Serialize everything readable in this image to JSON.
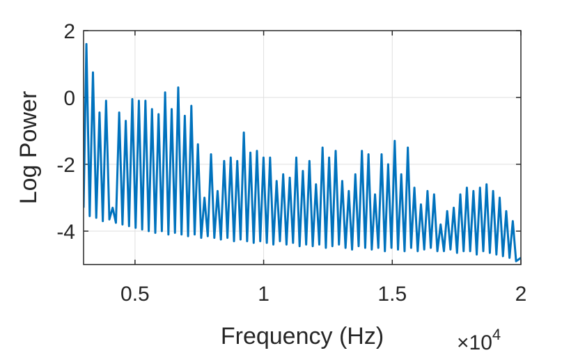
{
  "chart_data": {
    "type": "line",
    "xlabel": "Frequency (Hz)",
    "ylabel": "Log Power",
    "x_multiplier": {
      "base": "×10",
      "exponent": "4"
    },
    "color": "#0072bd",
    "grid": true,
    "xlim": [
      3000,
      20000
    ],
    "ylim": [
      -5,
      2
    ],
    "xticks": [
      {
        "value": 5000,
        "label": "0.5"
      },
      {
        "value": 10000,
        "label": "1"
      },
      {
        "value": 15000,
        "label": "1.5"
      },
      {
        "value": 20000,
        "label": "2"
      }
    ],
    "yticks": [
      -4,
      -2,
      0,
      2
    ],
    "x": [
      3000,
      3110,
      3238,
      3365,
      3493,
      3620,
      3748,
      3875,
      4003,
      4130,
      4258,
      4385,
      4513,
      4640,
      4768,
      4895,
      5023,
      5150,
      5278,
      5405,
      5533,
      5660,
      5788,
      5915,
      6043,
      6170,
      6298,
      6425,
      6553,
      6680,
      6808,
      6935,
      7063,
      7190,
      7318,
      7445,
      7573,
      7700,
      7828,
      7955,
      8083,
      8210,
      8338,
      8465,
      8593,
      8720,
      8848,
      8975,
      9103,
      9230,
      9358,
      9485,
      9613,
      9740,
      9868,
      9995,
      10123,
      10250,
      10378,
      10505,
      10633,
      10760,
      10888,
      11015,
      11143,
      11270,
      11398,
      11525,
      11653,
      11780,
      11908,
      12035,
      12163,
      12290,
      12418,
      12545,
      12673,
      12800,
      12928,
      13055,
      13183,
      13310,
      13438,
      13565,
      13693,
      13820,
      13948,
      14075,
      14203,
      14330,
      14458,
      14585,
      14713,
      14840,
      14968,
      15095,
      15223,
      15350,
      15478,
      15605,
      15733,
      15860,
      15988,
      16115,
      16243,
      16370,
      16498,
      16625,
      16753,
      16880,
      17008,
      17135,
      17263,
      17390,
      17518,
      17645,
      17773,
      17900,
      18028,
      18155,
      18283,
      18410,
      18538,
      18665,
      18793,
      18920,
      19048,
      19175,
      19303,
      19430,
      19558,
      19685,
      19813,
      20000
    ],
    "values": [
      -3.3,
      1.6,
      -3.55,
      0.75,
      -3.6,
      -0.45,
      -3.7,
      -0.1,
      -3.65,
      -3.3,
      -3.75,
      -0.45,
      -3.8,
      -0.7,
      -3.85,
      -0.05,
      -3.9,
      -0.1,
      -3.95,
      -0.1,
      -4.0,
      -0.35,
      -4.05,
      -0.5,
      -4.0,
      0.15,
      -4.1,
      -0.35,
      -4.05,
      0.3,
      -4.1,
      -0.55,
      -4.15,
      -0.25,
      -4.1,
      -1.4,
      -4.2,
      -3.0,
      -4.15,
      -1.7,
      -4.2,
      -2.8,
      -4.25,
      -1.9,
      -4.2,
      -1.8,
      -4.3,
      -1.9,
      -4.25,
      -1.05,
      -4.3,
      -1.65,
      -4.35,
      -1.6,
      -4.3,
      -1.8,
      -4.35,
      -1.8,
      -4.4,
      -2.5,
      -4.3,
      -2.3,
      -4.4,
      -2.4,
      -4.35,
      -1.8,
      -4.45,
      -2.2,
      -4.4,
      -1.9,
      -4.45,
      -2.6,
      -4.4,
      -1.5,
      -4.5,
      -1.8,
      -4.45,
      -1.6,
      -4.4,
      -2.5,
      -4.5,
      -2.8,
      -4.55,
      -2.3,
      -4.45,
      -1.6,
      -4.5,
      -1.7,
      -4.55,
      -2.9,
      -4.5,
      -1.7,
      -4.6,
      -2.0,
      -4.5,
      -1.3,
      -4.55,
      -2.3,
      -4.6,
      -1.5,
      -4.5,
      -2.7,
      -4.6,
      -3.2,
      -4.55,
      -2.8,
      -4.5,
      -2.9,
      -4.6,
      -3.8,
      -4.6,
      -3.4,
      -4.55,
      -3.3,
      -4.65,
      -2.9,
      -4.6,
      -2.7,
      -4.6,
      -2.8,
      -4.7,
      -2.7,
      -4.6,
      -2.6,
      -4.65,
      -2.8,
      -4.7,
      -3.0,
      -4.75,
      -3.4,
      -4.8,
      -3.7,
      -4.9,
      -4.8
    ]
  }
}
